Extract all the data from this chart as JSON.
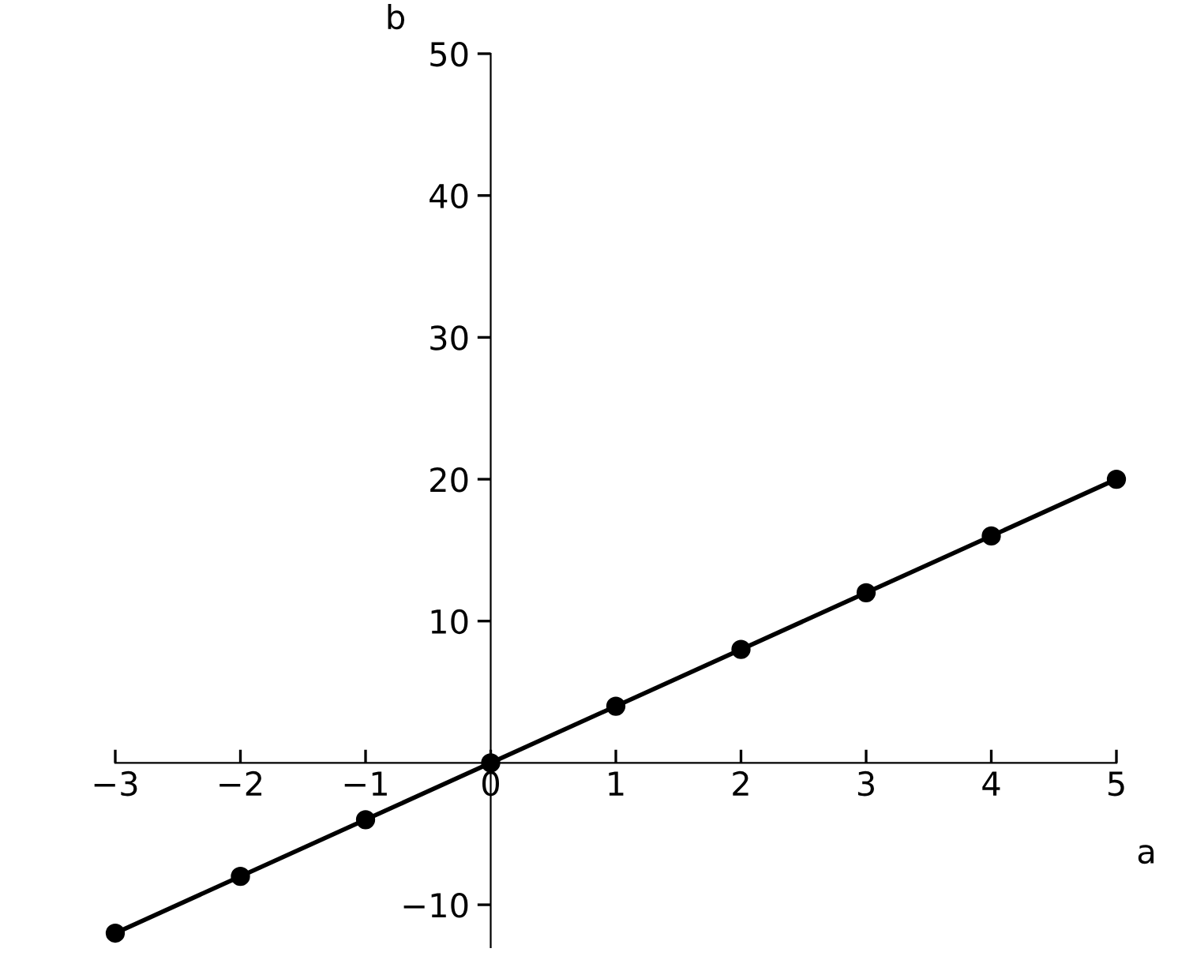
{
  "chart_data": {
    "type": "scatter",
    "xlabel": "a",
    "ylabel": "b",
    "x": [
      -3,
      -2,
      -1,
      0,
      1,
      2,
      3,
      4,
      5
    ],
    "series": [
      {
        "color": "#000000",
        "marker": "circle",
        "values": [
          -12,
          -8,
          -4,
          0,
          4,
          8,
          12,
          16,
          20
        ]
      },
      {
        "type": "line",
        "color": "#000000",
        "marker": "none",
        "line_style": "solid",
        "x": [
          -3,
          5
        ],
        "values": [
          -12,
          20
        ]
      }
    ],
    "xlim": [
      -3,
      5
    ],
    "ylim": [
      -13,
      50
    ],
    "xticks": [
      -3,
      -2,
      -1,
      0,
      1,
      2,
      3,
      4,
      5
    ],
    "yticks": [
      -10,
      10,
      20,
      30,
      40,
      50
    ],
    "grid": false,
    "legend": false
  }
}
